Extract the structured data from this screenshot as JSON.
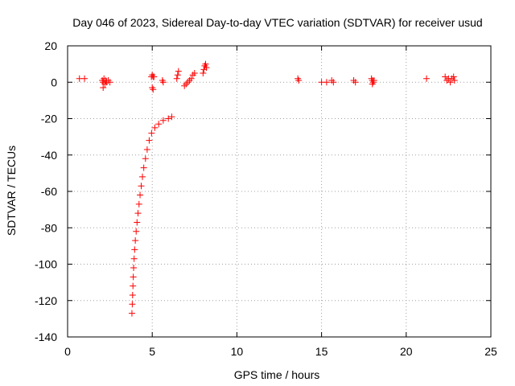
{
  "chart_data": {
    "type": "scatter",
    "title": "Day 046 of 2023, Sidereal Day-to-day VTEC variation (SDTVAR) for receiver usud",
    "xlabel": "GPS time / hours",
    "ylabel": "SDTVAR / TECUs",
    "xlim": [
      0,
      25
    ],
    "ylim": [
      -140,
      20
    ],
    "xticks": [
      0,
      5,
      10,
      15,
      20,
      25
    ],
    "yticks": [
      -140,
      -120,
      -100,
      -80,
      -60,
      -40,
      -20,
      0,
      20
    ],
    "grid": true,
    "marker": "+",
    "color": "#ff0000",
    "series": [
      {
        "name": "SDTVAR",
        "points": [
          [
            0.7,
            2
          ],
          [
            1.0,
            2
          ],
          [
            2.05,
            1
          ],
          [
            2.1,
            0
          ],
          [
            2.15,
            2
          ],
          [
            2.2,
            -1
          ],
          [
            2.1,
            -3
          ],
          [
            2.25,
            1
          ],
          [
            2.3,
            0
          ],
          [
            2.4,
            1
          ],
          [
            2.5,
            0
          ],
          [
            4.95,
            3
          ],
          [
            5.0,
            4
          ],
          [
            5.05,
            3
          ],
          [
            5.1,
            3
          ],
          [
            5.0,
            -3
          ],
          [
            5.05,
            -4
          ],
          [
            5.6,
            1
          ],
          [
            5.65,
            0
          ],
          [
            6.45,
            2
          ],
          [
            6.5,
            4
          ],
          [
            6.55,
            6
          ],
          [
            6.9,
            -2
          ],
          [
            7.0,
            -1
          ],
          [
            7.1,
            0
          ],
          [
            7.2,
            1
          ],
          [
            7.3,
            2
          ],
          [
            7.4,
            4
          ],
          [
            7.5,
            5
          ],
          [
            8.0,
            5
          ],
          [
            8.05,
            7
          ],
          [
            8.1,
            9
          ],
          [
            8.15,
            10
          ],
          [
            8.2,
            8
          ],
          [
            13.6,
            2
          ],
          [
            13.65,
            1
          ],
          [
            15.0,
            0
          ],
          [
            15.3,
            0
          ],
          [
            15.6,
            1
          ],
          [
            15.7,
            0
          ],
          [
            16.9,
            1
          ],
          [
            17.0,
            0
          ],
          [
            17.95,
            2
          ],
          [
            18.0,
            1
          ],
          [
            18.05,
            0
          ],
          [
            18.1,
            1
          ],
          [
            18.0,
            -1
          ],
          [
            21.2,
            2
          ],
          [
            22.3,
            3
          ],
          [
            22.4,
            1
          ],
          [
            22.5,
            2
          ],
          [
            22.6,
            0
          ],
          [
            22.7,
            2
          ],
          [
            22.8,
            3
          ],
          [
            22.85,
            1
          ],
          [
            3.8,
            -127
          ],
          [
            3.82,
            -122
          ],
          [
            3.84,
            -117
          ],
          [
            3.86,
            -112
          ],
          [
            3.88,
            -107
          ],
          [
            3.9,
            -102
          ],
          [
            3.93,
            -97
          ],
          [
            3.96,
            -92
          ],
          [
            4.0,
            -87
          ],
          [
            4.05,
            -82
          ],
          [
            4.1,
            -77
          ],
          [
            4.16,
            -72
          ],
          [
            4.22,
            -67
          ],
          [
            4.28,
            -62
          ],
          [
            4.35,
            -57
          ],
          [
            4.42,
            -52
          ],
          [
            4.5,
            -47
          ],
          [
            4.6,
            -42
          ],
          [
            4.7,
            -37
          ],
          [
            4.82,
            -32
          ],
          [
            4.96,
            -28
          ],
          [
            5.15,
            -25
          ],
          [
            5.38,
            -23
          ],
          [
            5.65,
            -21
          ],
          [
            5.95,
            -20
          ],
          [
            6.15,
            -19
          ]
        ]
      }
    ]
  }
}
